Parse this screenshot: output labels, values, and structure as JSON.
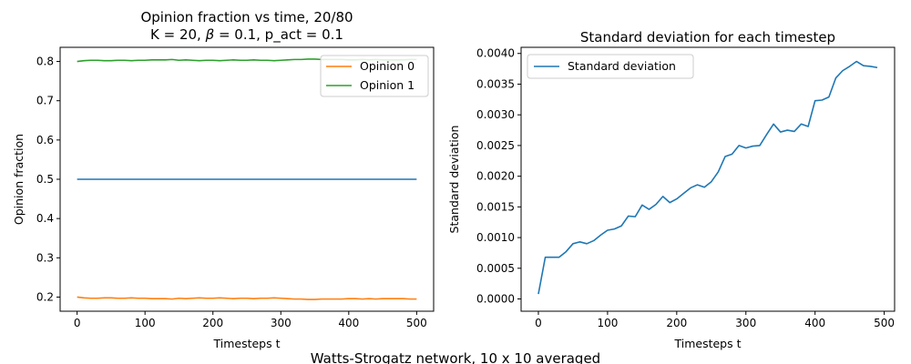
{
  "suptitle": "Watts-Strogatz network, 10 x 10 averaged",
  "chart_data": [
    {
      "type": "line",
      "title_line1": "Opinion fraction vs time, 20/80",
      "title_line2_prefix": "K = 20, ",
      "title_line2_beta": "β",
      "title_line2_suffix": " = 0.1, p_act = 0.1",
      "xlabel": "Timesteps t",
      "ylabel": "Opinion fraction",
      "xlim": [
        -25,
        525
      ],
      "ylim": [
        0.164,
        0.836
      ],
      "xticks": [
        0,
        100,
        200,
        300,
        400,
        500
      ],
      "yticks": [
        0.2,
        0.3,
        0.4,
        0.5,
        0.6,
        0.7,
        0.8
      ],
      "ytick_labels": [
        "0.2",
        "0.3",
        "0.4",
        "0.5",
        "0.6",
        "0.7",
        "0.8"
      ],
      "legend_position": "upper right",
      "x": [
        0,
        10,
        20,
        30,
        40,
        50,
        60,
        70,
        80,
        90,
        100,
        110,
        120,
        130,
        140,
        150,
        160,
        170,
        180,
        190,
        200,
        210,
        220,
        230,
        240,
        250,
        260,
        270,
        280,
        290,
        300,
        310,
        320,
        330,
        340,
        350,
        360,
        370,
        380,
        390,
        400,
        410,
        420,
        430,
        440,
        450,
        460,
        470,
        480,
        490,
        500
      ],
      "series": [
        {
          "color": "#1f77b4",
          "values": [
            0.5,
            0.5,
            0.5,
            0.5,
            0.5,
            0.5,
            0.5,
            0.5,
            0.5,
            0.5,
            0.5,
            0.5,
            0.5,
            0.5,
            0.5,
            0.5,
            0.5,
            0.5,
            0.5,
            0.5,
            0.5,
            0.5,
            0.5,
            0.5,
            0.5,
            0.5,
            0.5,
            0.5,
            0.5,
            0.5,
            0.5,
            0.5,
            0.5,
            0.5,
            0.5,
            0.5,
            0.5,
            0.5,
            0.5,
            0.5,
            0.5,
            0.5,
            0.5,
            0.5,
            0.5,
            0.5,
            0.5,
            0.5,
            0.5,
            0.5,
            0.5
          ]
        },
        {
          "name": "Opinion 0",
          "color": "#ff7f0e",
          "values": [
            0.2,
            0.198,
            0.197,
            0.197,
            0.198,
            0.198,
            0.197,
            0.197,
            0.198,
            0.197,
            0.197,
            0.196,
            0.196,
            0.196,
            0.195,
            0.197,
            0.196,
            0.197,
            0.198,
            0.197,
            0.197,
            0.198,
            0.197,
            0.196,
            0.197,
            0.197,
            0.196,
            0.197,
            0.197,
            0.198,
            0.197,
            0.196,
            0.195,
            0.195,
            0.194,
            0.194,
            0.195,
            0.195,
            0.195,
            0.195,
            0.196,
            0.196,
            0.195,
            0.196,
            0.195,
            0.196,
            0.196,
            0.196,
            0.196,
            0.195,
            0.195
          ]
        },
        {
          "name": "Opinion 1",
          "color": "#2ca02c",
          "values": [
            0.8,
            0.802,
            0.803,
            0.803,
            0.802,
            0.802,
            0.803,
            0.803,
            0.802,
            0.803,
            0.803,
            0.804,
            0.804,
            0.804,
            0.805,
            0.803,
            0.804,
            0.803,
            0.802,
            0.803,
            0.803,
            0.802,
            0.803,
            0.804,
            0.803,
            0.803,
            0.804,
            0.803,
            0.803,
            0.802,
            0.803,
            0.804,
            0.805,
            0.805,
            0.806,
            0.806,
            0.805,
            0.805,
            0.805,
            0.805,
            0.804,
            0.804,
            0.805,
            0.804,
            0.805,
            0.804,
            0.804,
            0.804,
            0.804,
            0.805,
            0.805
          ]
        }
      ]
    },
    {
      "type": "line",
      "title": "Standard deviation for each timestep",
      "xlabel": "Timesteps t",
      "ylabel": "Standard deviation",
      "xlim": [
        -25,
        515
      ],
      "ylim": [
        -0.0002,
        0.0041
      ],
      "xticks": [
        0,
        100,
        200,
        300,
        400,
        500
      ],
      "yticks": [
        0.0,
        0.0005,
        0.001,
        0.0015,
        0.002,
        0.0025,
        0.003,
        0.0035,
        0.004
      ],
      "ytick_labels": [
        "0.0000",
        "0.0005",
        "0.0010",
        "0.0015",
        "0.0020",
        "0.0025",
        "0.0030",
        "0.0035",
        "0.0040"
      ],
      "legend_position": "upper left",
      "x": [
        0,
        10,
        20,
        30,
        40,
        50,
        60,
        70,
        80,
        90,
        100,
        110,
        120,
        130,
        140,
        150,
        160,
        170,
        180,
        190,
        200,
        210,
        220,
        230,
        240,
        250,
        260,
        270,
        280,
        290,
        300,
        310,
        320,
        330,
        340,
        350,
        360,
        370,
        380,
        390,
        400,
        410,
        420,
        430,
        440,
        450,
        460,
        470,
        480,
        490
      ],
      "series": [
        {
          "name": "Standard deviation",
          "color": "#1f77b4",
          "values": [
            8e-05,
            0.00068,
            0.00068,
            0.00068,
            0.00077,
            0.0009,
            0.00093,
            0.0009,
            0.00095,
            0.00104,
            0.00112,
            0.00114,
            0.00119,
            0.00135,
            0.00134,
            0.00153,
            0.00146,
            0.00154,
            0.00167,
            0.00157,
            0.00163,
            0.00172,
            0.00181,
            0.00186,
            0.00182,
            0.00191,
            0.00207,
            0.00232,
            0.00236,
            0.0025,
            0.00246,
            0.00249,
            0.0025,
            0.00268,
            0.00285,
            0.00272,
            0.00275,
            0.00273,
            0.00285,
            0.00281,
            0.00323,
            0.00324,
            0.00329,
            0.0036,
            0.00372,
            0.00379,
            0.00387,
            0.0038,
            0.00379,
            0.00377
          ]
        }
      ]
    }
  ]
}
